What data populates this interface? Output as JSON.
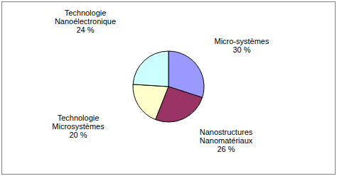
{
  "chart_data": {
    "type": "pie",
    "categories": [
      "Micro-systèmes",
      "Nanostructures Nanomatériaux",
      "Technologie Microsystèmes",
      "Technologie Nanoélectronique"
    ],
    "values": [
      30,
      26,
      20,
      24
    ],
    "value_labels": [
      "30 %",
      "26 %",
      "20 %",
      "24 %"
    ],
    "colors": [
      "#9999FF",
      "#993366",
      "#FFFFCC",
      "#CCFFFF"
    ],
    "data_labels": true
  }
}
